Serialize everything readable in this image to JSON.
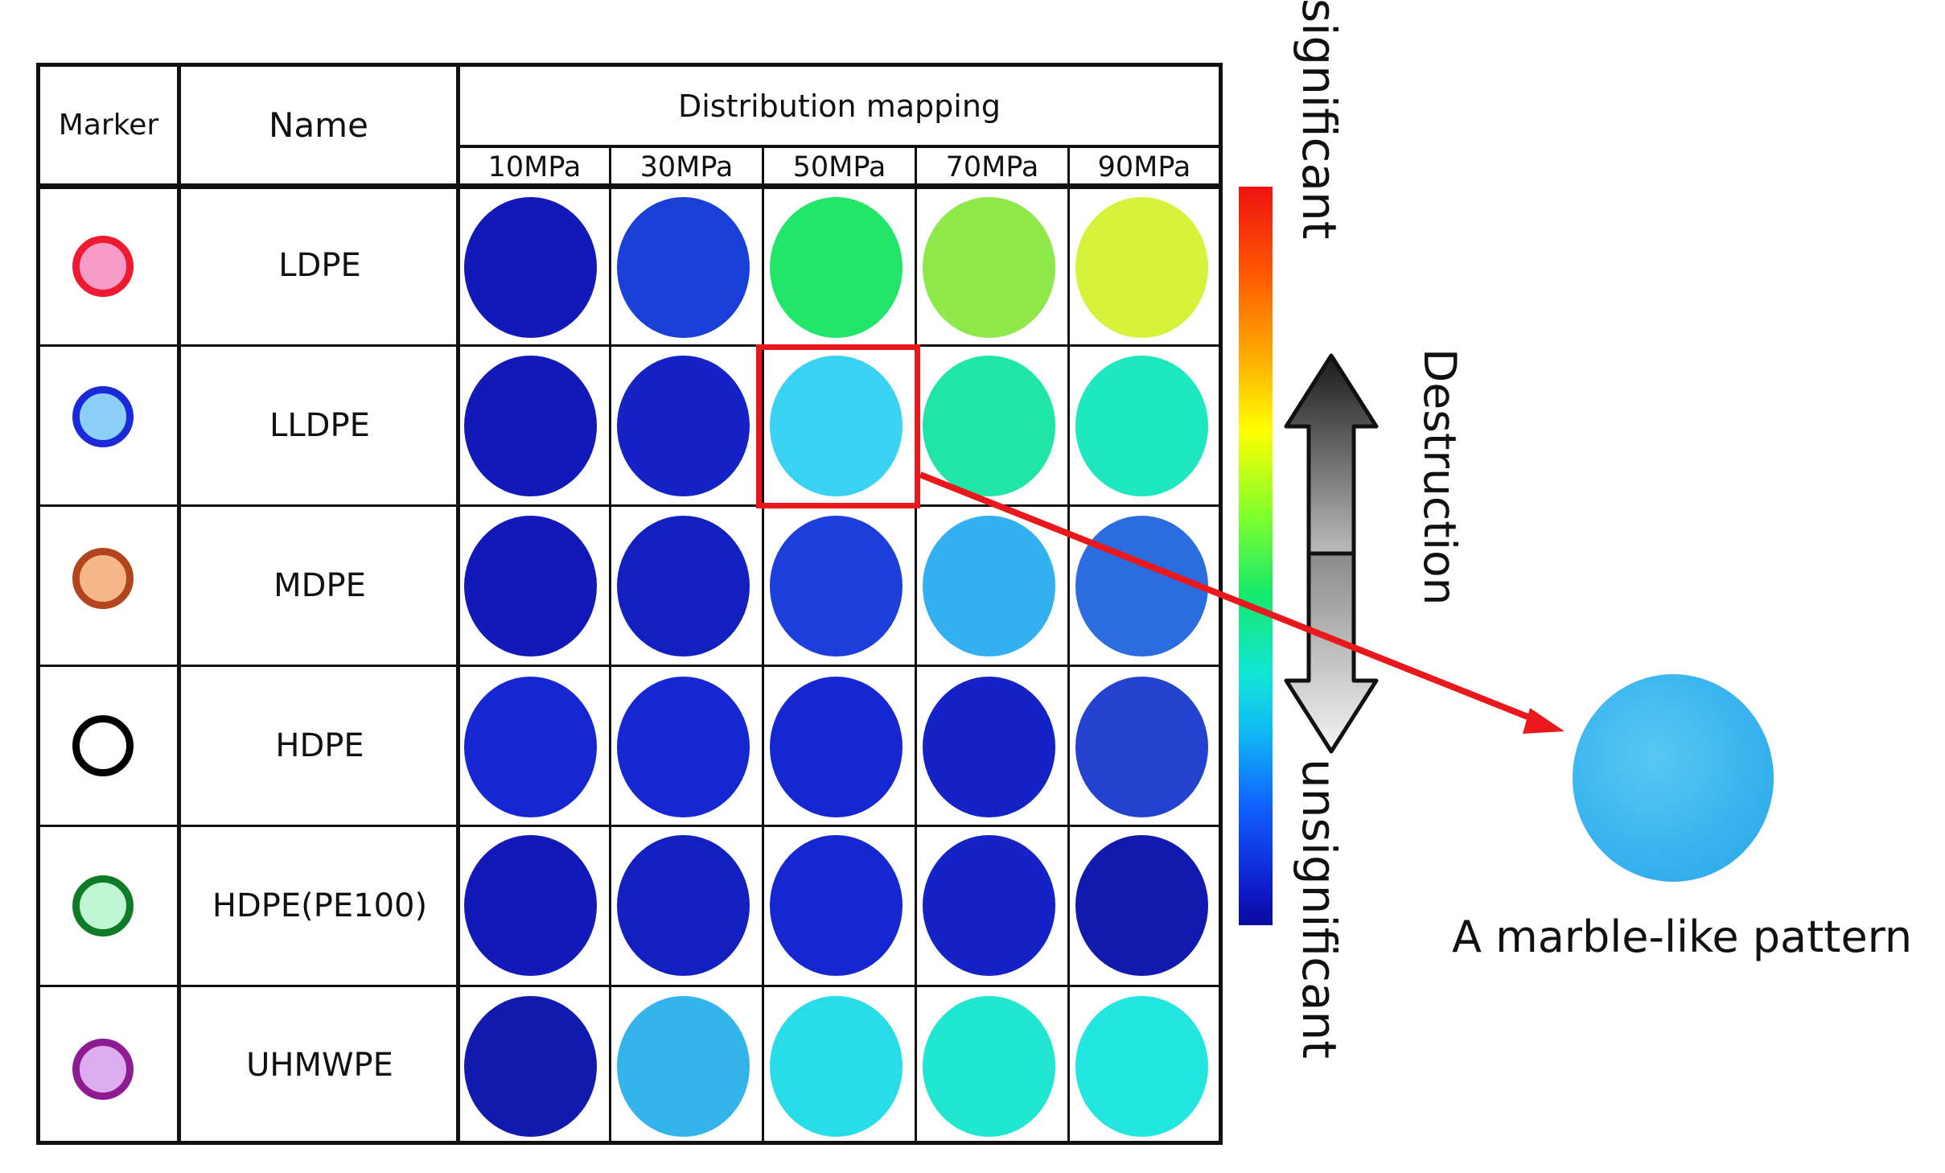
{
  "table": {
    "headers": {
      "marker": "Marker",
      "name": "Name",
      "group": "Distribution mapping"
    },
    "pressures": [
      "10MPa",
      "30MPa",
      "50MPa",
      "70MPa",
      "90MPa"
    ],
    "rows": [
      {
        "name": "LDPE",
        "marker_fill": "#f79bc8",
        "marker_stroke": "#ee1a32",
        "cells": [
          "#1219b8",
          "#1a3fd8",
          "#22e66a",
          "#8ee84a",
          "#d6f23a"
        ]
      },
      {
        "name": "LLDPE",
        "marker_fill": "#8ccff8",
        "marker_stroke": "#1a2ad8",
        "cells": [
          "#1219b8",
          "#1422c6",
          "#3ad2f2",
          "#1fe6a6",
          "#1fe8c0"
        ]
      },
      {
        "name": "MDPE",
        "marker_fill": "#f6b889",
        "marker_stroke": "#b2451e",
        "cells": [
          "#1219b8",
          "#1320c0",
          "#1e3edc",
          "#33b0ef",
          "#2b6cde"
        ]
      },
      {
        "name": "HDPE",
        "marker_fill": "#ffffff",
        "marker_stroke": "#000000",
        "cells": [
          "#1627d2",
          "#1626d0",
          "#1626d0",
          "#1422c6",
          "#2342cf"
        ]
      },
      {
        "name": "HDPE(PE100)",
        "marker_fill": "#bff5d2",
        "marker_stroke": "#117a26",
        "cells": [
          "#1219b8",
          "#1320c0",
          "#1626d0",
          "#1422c6",
          "#1119ae"
        ]
      },
      {
        "name": "UHMWPE",
        "marker_fill": "#dcaef0",
        "marker_stroke": "#8d1b92",
        "cells": [
          "#1119ae",
          "#33b4ea",
          "#28dde8",
          "#20e6d2",
          "#24e6e0"
        ]
      }
    ]
  },
  "colorbar": {
    "top_label": "significant",
    "bottom_label": "unsignificant",
    "colors": {
      "high": "#ee1111",
      "low": "#0b0b9c"
    }
  },
  "arrow": {
    "label": "Destruction"
  },
  "callout": {
    "caption": "A marble-like pattern",
    "highlight_row": "LLDPE",
    "highlight_pressure": "50MPa",
    "colors": {
      "frame": "#e8181c",
      "disc": "#3ab4ee"
    }
  }
}
